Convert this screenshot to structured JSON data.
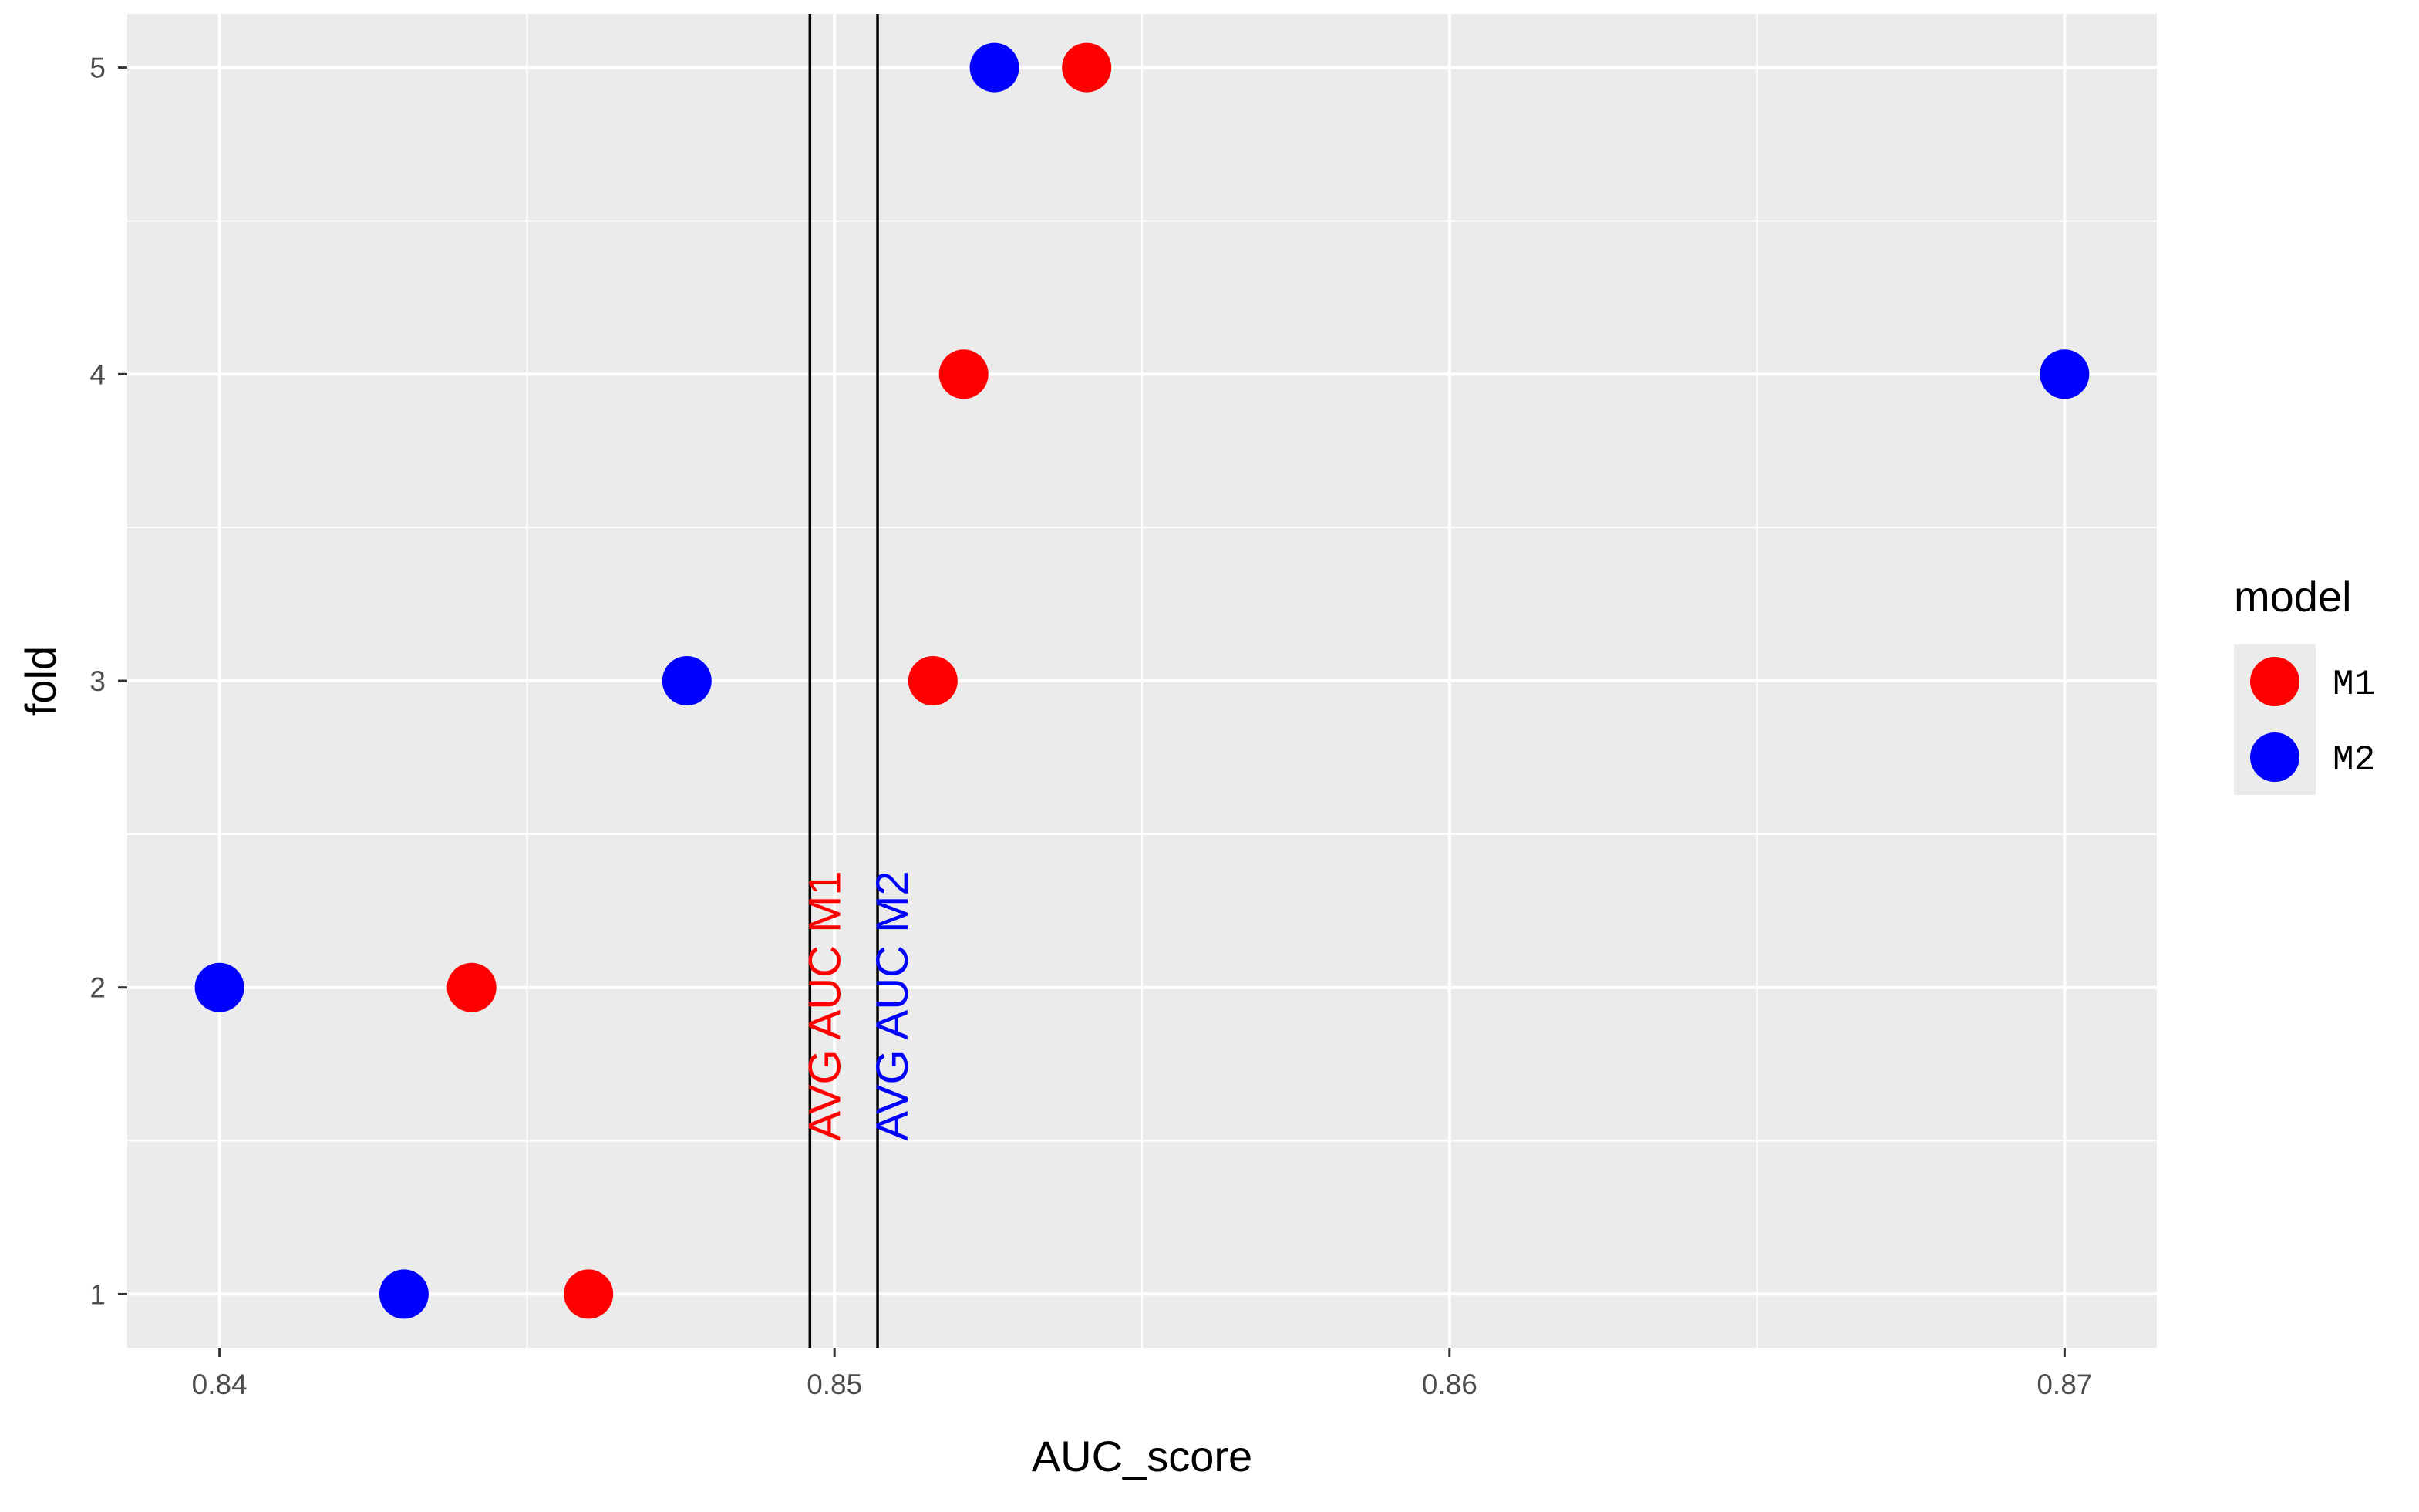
{
  "chart_data": {
    "type": "scatter",
    "xlabel": "AUC_score",
    "ylabel": "fold",
    "xlim": [
      0.8385,
      0.8715
    ],
    "ylim": [
      0.825,
      5.175
    ],
    "x_ticks": [
      0.84,
      0.85,
      0.86,
      0.87
    ],
    "x_tick_labels": [
      "0.84",
      "0.85",
      "0.86",
      "0.87"
    ],
    "y_ticks": [
      1,
      2,
      3,
      4,
      5
    ],
    "y_tick_labels": [
      "1",
      "2",
      "3",
      "4",
      "5"
    ],
    "grid": true,
    "legend": {
      "title": "model",
      "position": "right"
    },
    "series": [
      {
        "name": "M1",
        "color": "#ff0000",
        "points": [
          {
            "x": 0.846,
            "y": 1
          },
          {
            "x": 0.8441,
            "y": 2
          },
          {
            "x": 0.8516,
            "y": 3
          },
          {
            "x": 0.8521,
            "y": 4
          },
          {
            "x": 0.8541,
            "y": 5
          }
        ]
      },
      {
        "name": "M2",
        "color": "#0000ff",
        "points": [
          {
            "x": 0.843,
            "y": 1
          },
          {
            "x": 0.84,
            "y": 2
          },
          {
            "x": 0.8476,
            "y": 3
          },
          {
            "x": 0.87,
            "y": 4
          },
          {
            "x": 0.8526,
            "y": 5
          }
        ]
      }
    ],
    "vlines": [
      {
        "x": 0.8496,
        "label": "AVG AUC M1",
        "color": "#ff0000"
      },
      {
        "x": 0.8507,
        "label": "AVG AUC M2",
        "color": "#0000ff"
      }
    ]
  }
}
